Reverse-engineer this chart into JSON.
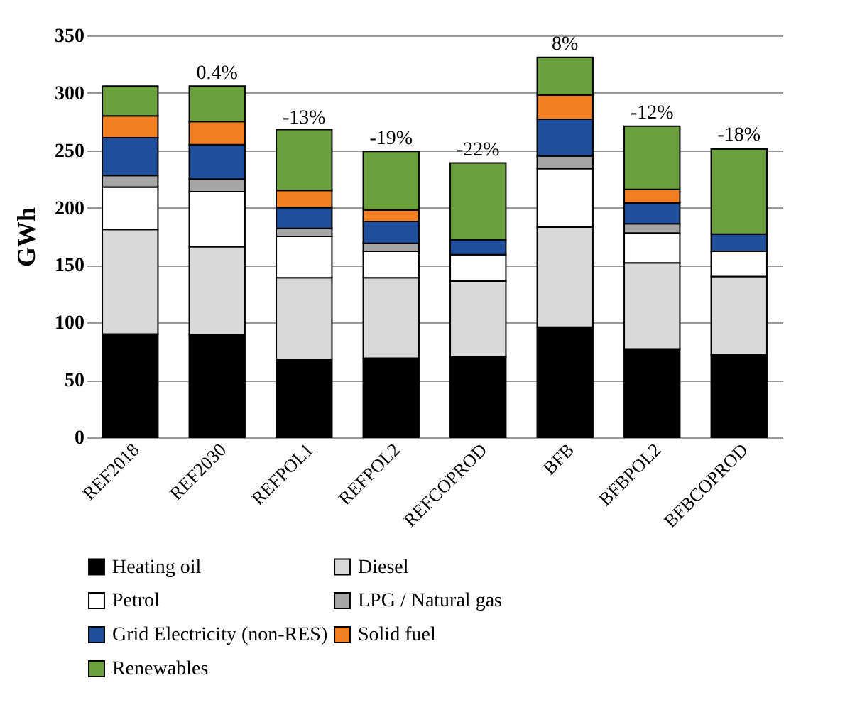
{
  "chart_data": {
    "type": "bar",
    "stacked": true,
    "ylabel": "GWh",
    "ylim": [
      0,
      350
    ],
    "yticks": [
      0,
      50,
      100,
      150,
      200,
      250,
      300,
      350
    ],
    "grid": "y",
    "legend": "bottom",
    "categories": [
      "REF2018",
      "REF2030",
      "REFPOL1",
      "REFPOL2",
      "REFCOPROD",
      "BFB",
      "BFBPOL2",
      "BFBCOPROD"
    ],
    "series": [
      {
        "name": "Heating oil",
        "color": "#000000",
        "values": [
          90,
          89,
          68,
          69,
          70,
          96,
          77,
          72
        ]
      },
      {
        "name": "Diesel",
        "color": "#d9d9d9",
        "values": [
          91,
          77,
          71,
          70,
          66,
          87,
          75,
          68
        ]
      },
      {
        "name": "Petrol",
        "color": "#ffffff",
        "values": [
          37,
          48,
          36,
          23,
          23,
          51,
          26,
          22
        ]
      },
      {
        "name": "LPG / Natural gas",
        "color": "#a6a6a6",
        "values": [
          10,
          11,
          7,
          7,
          null,
          11,
          8,
          null
        ]
      },
      {
        "name": "Grid Electricity (non-RES)",
        "color": "#1f4e9c",
        "values": [
          33,
          30,
          18,
          19,
          13,
          32,
          18,
          15
        ]
      },
      {
        "name": "Solid fuel",
        "color": "#f28022",
        "values": [
          19,
          20,
          15,
          10,
          null,
          21,
          12,
          null
        ]
      },
      {
        "name": "Renewables",
        "color": "#6aa13d",
        "values": [
          26,
          31,
          53,
          51,
          67,
          33,
          55,
          74
        ]
      }
    ],
    "annotations": [
      {
        "text": "0.4%",
        "x": "REF2030",
        "y": 305
      },
      {
        "text": "-13%",
        "x": "REFPOL1",
        "y": 266
      },
      {
        "text": "-19%",
        "x": "REFPOL2",
        "y": 248
      },
      {
        "text": "-22%",
        "x": "REFCOPROD",
        "y": 238
      },
      {
        "text": "8%",
        "x": "BFB",
        "y": 330
      },
      {
        "text": "-12%",
        "x": "BFBPOL2",
        "y": 270
      },
      {
        "text": "-18%",
        "x": "BFBCOPROD",
        "y": 251
      }
    ]
  }
}
